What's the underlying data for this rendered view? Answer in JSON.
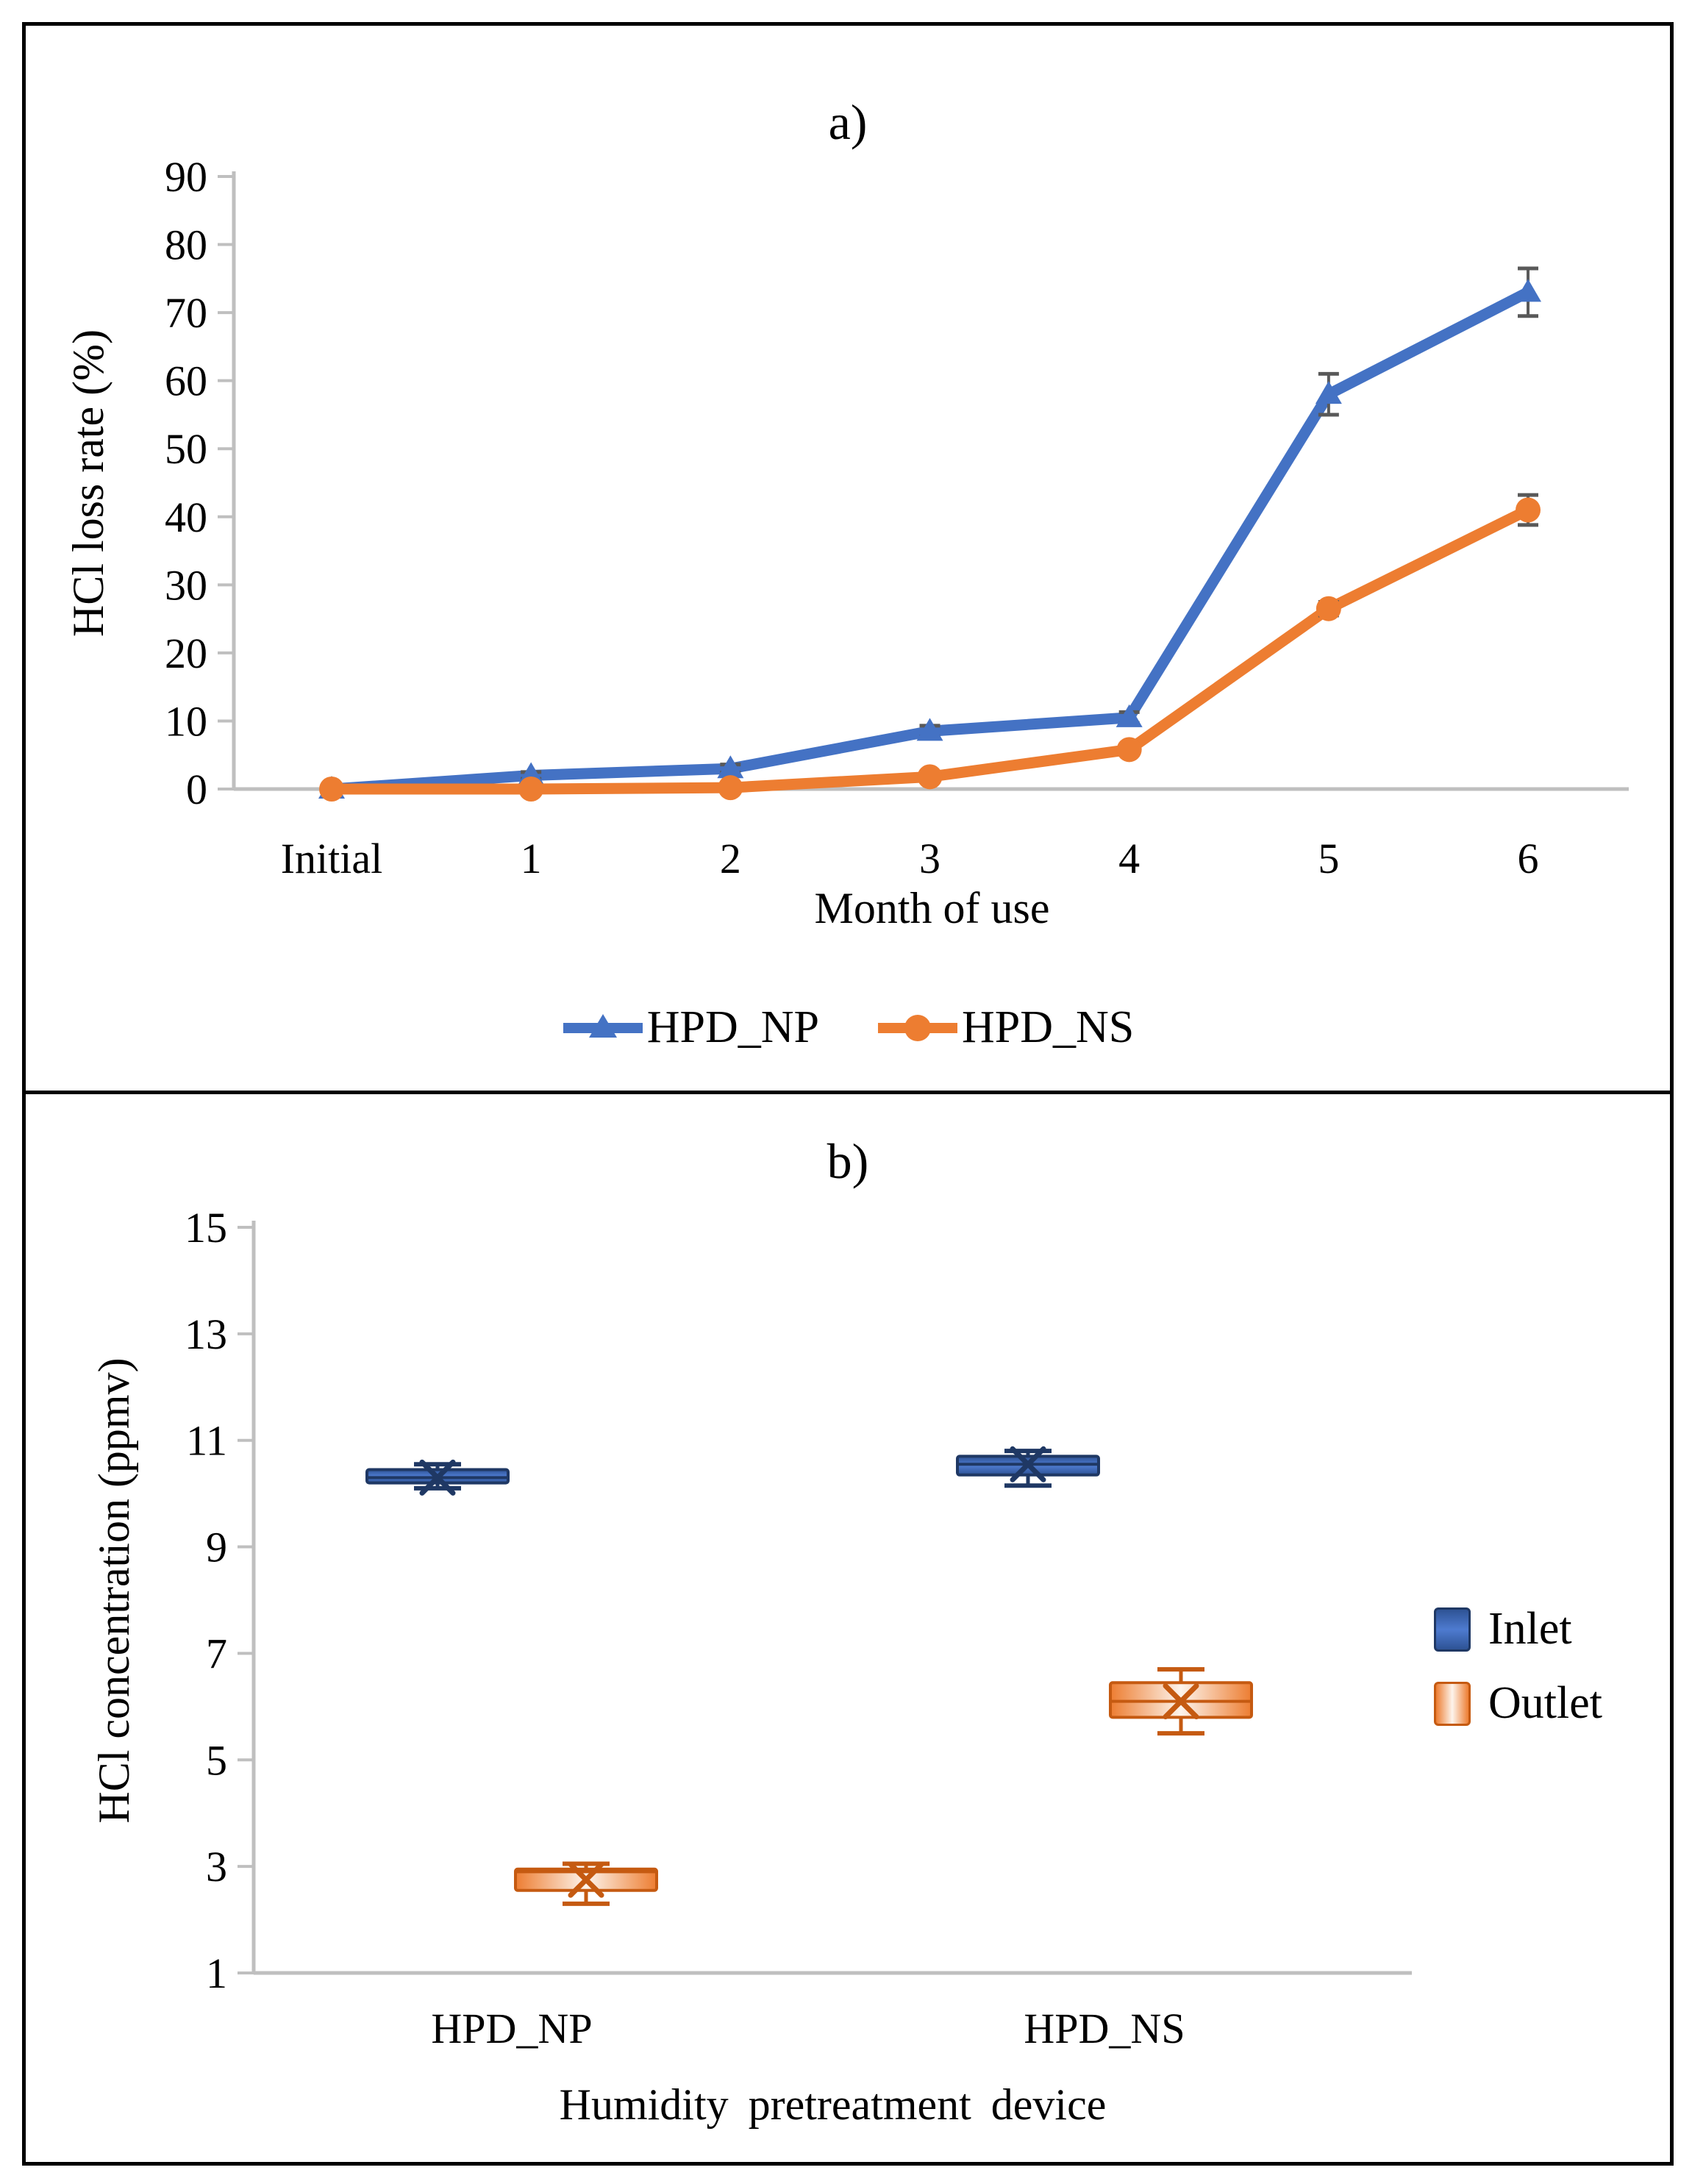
{
  "chart_data": [
    {
      "type": "line",
      "panel": "a",
      "title": "a)",
      "categories": [
        "Initial",
        "1",
        "2",
        "3",
        "4",
        "5",
        "6"
      ],
      "series": [
        {
          "name": "HPD_NP",
          "color": "#4472C4",
          "marker": "triangle",
          "values": [
            0,
            2,
            3,
            8.5,
            10.5,
            58,
            73
          ],
          "errors": [
            0.4,
            0.5,
            0.6,
            0.8,
            0.8,
            3,
            3.5
          ]
        },
        {
          "name": "HPD_NS",
          "color": "#ED7D31",
          "marker": "circle",
          "values": [
            0,
            0,
            0.2,
            1.8,
            5.8,
            26.5,
            41
          ],
          "errors": [
            0.2,
            0.2,
            0.2,
            0.4,
            0.5,
            1,
            2.2
          ]
        }
      ],
      "xlabel": "Month of use",
      "ylabel": "HCl loss rate (%)",
      "ylim": [
        0,
        90
      ],
      "ytick_step": 10,
      "legend_position": "bottom",
      "grid": false
    },
    {
      "type": "boxplot",
      "panel": "b",
      "title": "b)",
      "categories": [
        "HPD_NP",
        "HPD_NS"
      ],
      "series": [
        {
          "name": "Inlet",
          "color": "#4472C4",
          "boxes": [
            {
              "low": 10.1,
              "q1": 10.2,
              "median": 10.3,
              "q3": 10.45,
              "high": 10.55,
              "mean": 10.3
            },
            {
              "low": 10.15,
              "q1": 10.35,
              "median": 10.55,
              "q3": 10.7,
              "high": 10.8,
              "mean": 10.55
            }
          ]
        },
        {
          "name": "Outlet",
          "color": "#ED7D31",
          "boxes": [
            {
              "low": 2.3,
              "q1": 2.55,
              "median": 2.9,
              "q3": 2.95,
              "high": 3.05,
              "mean": 2.75
            },
            {
              "low": 5.5,
              "q1": 5.8,
              "median": 6.1,
              "q3": 6.45,
              "high": 6.7,
              "mean": 6.1
            }
          ]
        }
      ],
      "xlabel": "Humidity pretreatment device",
      "ylabel": "HCl concentration (ppmv)",
      "ylim": [
        1,
        15
      ],
      "ytick_step": 2,
      "legend_position": "right",
      "grid": false
    }
  ],
  "colors": {
    "series_blue": "#4472C4",
    "series_orange": "#ED7D31",
    "blue_dark": "#1F3864",
    "orange_dark": "#C55A11",
    "axis_gray": "#BFBFBF",
    "error_bar_gray": "#595959",
    "text": "#000000",
    "border": "#000000"
  }
}
